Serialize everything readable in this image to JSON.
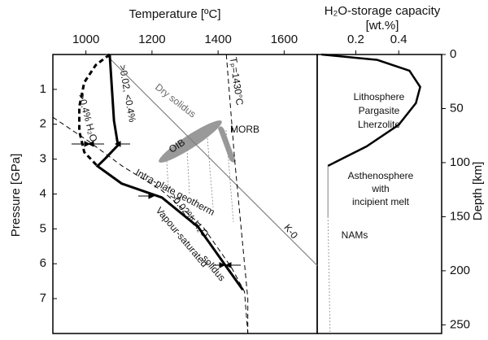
{
  "chart_data": [
    {
      "type": "line",
      "title": "Temperature [ºC]",
      "y_label": "Pressure [GPa]",
      "xlim": [
        900,
        1700
      ],
      "ylim": [
        8,
        0
      ],
      "xticks": [
        1000,
        1200,
        1400,
        1600
      ],
      "yticks": [
        1,
        2,
        3,
        4,
        5,
        6,
        7
      ],
      "series": [
        {
          "color": "#808080",
          "style": "solid",
          "width": 1.2,
          "x": [
            1060,
            1700
          ],
          "values": [
            0,
            6.05
          ]
        },
        {
          "color": "#000000",
          "style": "dashed",
          "width": 1,
          "x": [
            1425,
            1450,
            1470,
            1485,
            1490,
            1490
          ],
          "values": [
            0,
            3,
            5,
            6.5,
            7,
            8
          ]
        },
        {
          "color": "#000000",
          "style": "dashed",
          "width": 1,
          "x": [
            900,
            1010,
            1110,
            1230,
            1355,
            1440,
            1480,
            1490
          ],
          "values": [
            1.8,
            2.5,
            3.2,
            3.9,
            4.95,
            6.1,
            6.8,
            8
          ]
        },
        {
          "color": "#000000",
          "style": "solid",
          "width": 3,
          "x": [
            1072,
            1085,
            1097,
            1060,
            1035,
            1108,
            1230,
            1340,
            1426,
            1475
          ],
          "values": [
            0,
            1.9,
            2.6,
            2.97,
            3.2,
            3.7,
            4.1,
            4.95,
            6.1,
            6.75
          ]
        },
        {
          "color": "#000000",
          "style": "dashed",
          "width": 3,
          "x": [
            1072,
            1030,
            995,
            980,
            980,
            995,
            1035
          ],
          "values": [
            0,
            0.3,
            0.8,
            1.5,
            2.2,
            2.8,
            3.2
          ]
        }
      ],
      "annotations": [
        "Dry solidus",
        "Tₚ=1430°C",
        "MORB",
        "OIB",
        ">0.02, <0.4%",
        ">0.4% H₂O",
        "Intra-plate geotherm",
        ">0.02% H₂O",
        "Vapour-saturated",
        "solidus",
        "K-0"
      ]
    },
    {
      "type": "line",
      "title": "H₂O-storage capacity",
      "subtitle": "[wt.%]",
      "y_label": "Depth [km]",
      "xlim": [
        0.02,
        0.6
      ],
      "ylim": [
        258,
        0
      ],
      "xticks": [
        0.2,
        0.4
      ],
      "yticks": [
        0,
        50,
        100,
        150,
        200,
        250
      ],
      "series": [
        {
          "color": "#000000",
          "style": "solid",
          "width": 2.5,
          "x": [
            0.04,
            0.3,
            0.45,
            0.5,
            0.48,
            0.4,
            0.25,
            0.12,
            0.07
          ],
          "values": [
            0,
            5,
            15,
            30,
            45,
            65,
            85,
            98,
            103
          ]
        },
        {
          "color": "#808080",
          "style": "solid",
          "width": 1,
          "x": [
            0.07,
            0.07
          ],
          "values": [
            103,
            150
          ]
        },
        {
          "color": "#808080",
          "style": "dotted",
          "width": 1,
          "x": [
            0.07,
            0.075,
            0.08
          ],
          "values": [
            150,
            200,
            258
          ]
        }
      ],
      "annotations": [
        "Lithosphere",
        "Pargasite",
        "Lherzolite",
        "Asthenosphere",
        "with",
        "incipient melt",
        "NAMs"
      ]
    }
  ]
}
